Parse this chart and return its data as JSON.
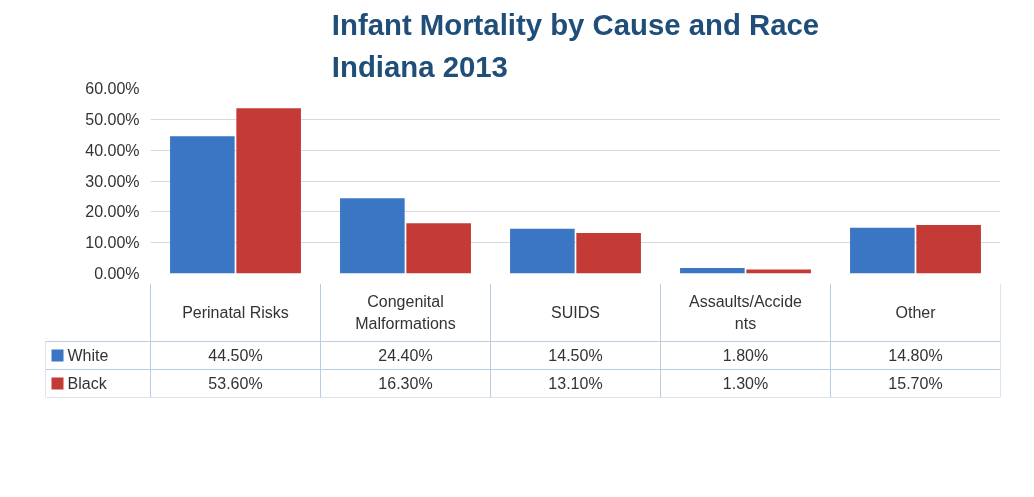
{
  "chart_data": {
    "type": "bar",
    "title": "Infant Mortality by Cause and Race\nIndiana 2013",
    "categories": [
      "Perinatal Risks",
      "Congenital Malformations",
      "SUIDS",
      "Assaults/Accidents",
      "Other"
    ],
    "series": [
      {
        "name": "White",
        "color": "#3a76c4",
        "values": [
          44.5,
          24.4,
          14.5,
          1.8,
          14.8
        ],
        "value_labels": [
          "44.50%",
          "24.40%",
          "14.50%",
          "1.80%",
          "14.80%"
        ]
      },
      {
        "name": "Black",
        "color": "#c43a36",
        "values": [
          53.6,
          16.3,
          13.1,
          1.3,
          15.7
        ],
        "value_labels": [
          "53.60%",
          "16.30%",
          "13.10%",
          "1.30%",
          "15.70%"
        ]
      }
    ],
    "ylim": [
      0,
      60
    ],
    "yticks": [
      {
        "value": 0,
        "label": "0.00%"
      },
      {
        "value": 10,
        "label": "10.00%"
      },
      {
        "value": 20,
        "label": "20.00%"
      },
      {
        "value": 30,
        "label": "30.00%"
      },
      {
        "value": 40,
        "label": "40.00%"
      },
      {
        "value": 50,
        "label": "50.00%"
      },
      {
        "value": 60,
        "label": "60.00%"
      }
    ],
    "grid": "y",
    "legend": "bottom"
  }
}
